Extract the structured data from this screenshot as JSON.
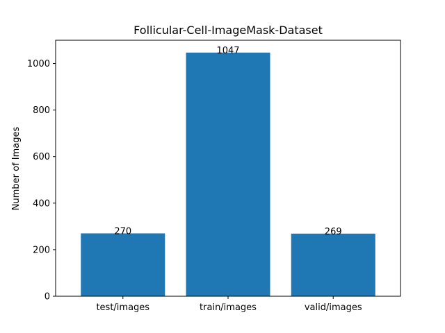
{
  "chart_data": {
    "type": "bar",
    "title": "Follicular-Cell-ImageMask-Dataset",
    "xlabel": "",
    "ylabel": "Number of Images",
    "categories": [
      "test/images",
      "train/images",
      "valid/images"
    ],
    "values": [
      270,
      1047,
      269
    ],
    "data_labels": [
      "270",
      "1047",
      "269"
    ],
    "ylim": [
      0,
      1100
    ],
    "yticks": [
      0,
      200,
      400,
      600,
      800,
      1000
    ],
    "ytick_labels": [
      "0",
      "200",
      "400",
      "600",
      "800",
      "1000"
    ],
    "bar_color": "#1f77b4",
    "grid": false,
    "legend": "none"
  }
}
